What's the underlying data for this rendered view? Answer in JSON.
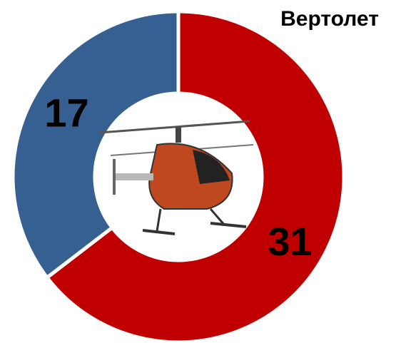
{
  "chart_data": {
    "type": "donut",
    "title": "Вертолет",
    "categories": [
      null,
      null
    ],
    "series": [
      {
        "values": [
          31,
          17
        ],
        "colors": [
          "#c00000",
          "#376092"
        ]
      }
    ]
  }
}
